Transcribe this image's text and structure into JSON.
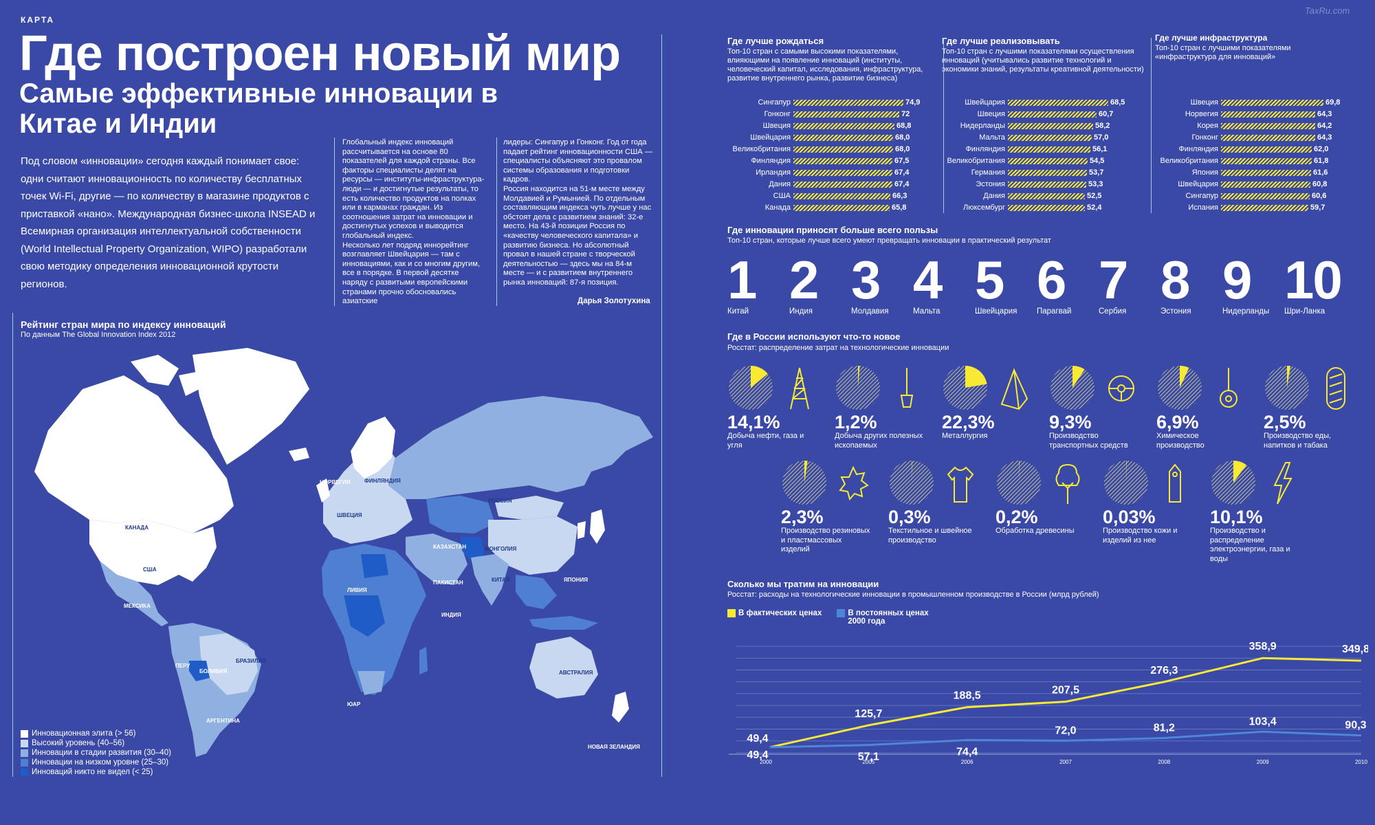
{
  "header": {
    "kicker": "КАРТА",
    "title": "Где построен новый мир",
    "subtitle": "Самые эффективные инновации в Китае и Индии",
    "watermark": "TaxRu.com"
  },
  "lead": "Под словом «инновации» сегодня каждый понимает свое: одни считают инновационность по количеству бесплатных точек Wi-Fi, другие — по количеству в магазине продуктов с приставкой «нано». Международная бизнес-школа INSEAD и Всемирная организация интеллектуальной собственности (World Intellectual Property Organization, WIPO) разработали свою методику определения инновационной крутости регионов.",
  "body": {
    "col1": "Глобальный индекс инноваций рассчитывается на основе 80 показателей для каждой страны. Все факторы специалисты делят на ресурсы — институты-инфраструктура-люди — и достигнутые результаты, то есть количество продуктов на полках или в карманах граждан. Из соотношения затрат на инновации и достигнутых успехов и выводится глобальный индекс.\nНесколько лет подряд иннорейтинг возглавляет Швейцария — там с инновациями, как и со многим другим, все в порядке. В первой десятке наряду с развитыми европейскими странами прочно обосновались азиатские",
    "col2": "лидеры: Сингапур и Гонконг. Год от года падает рейтинг инновационности США — специалисты объясняют это провалом системы образования и подготовки кадров.\nРоссия находится на 51-м месте между Молдавией и Румынией. По отдельным составляющим индекса чуть лучше у нас обстоят дела с развитием знаний: 32-е место. На 43-й позиции Россия по «качеству человеческого капитала» и развитию бизнеса. Но абсолютный провал в нашей стране с творческой деятельностью — здесь мы на 84-м месте — и с развитием внутреннего рынка инноваций: 87-я позиция.",
    "author": "Дарья Золотухина"
  },
  "map": {
    "title": "Рейтинг стран мира по индексу инноваций",
    "source": "По данным The Global Innovation Index 2012",
    "labels": {
      "canada": "КАНАДА",
      "usa": "США",
      "mexico": "МЕКСИКА",
      "peru": "ПЕРУ",
      "bolivia": "БОЛИВИЯ",
      "brazil": "БРАЗИЛИЯ",
      "argentina": "АРГЕНТИНА",
      "norway": "НОРВЕГИЯ",
      "finland": "ФИНЛЯНДИЯ",
      "sweden": "ШВЕЦИЯ",
      "russia": "РОССИЯ",
      "kazakhstan": "КАЗАХСТАН",
      "mongolia": "МОНГОЛИЯ",
      "china": "КИТАЙ",
      "japan": "ЯПОНИЯ",
      "pakistan": "ПАКИСТАН",
      "india": "ИНДИЯ",
      "libya": "ЛИВИЯ",
      "sa": "ЮАР",
      "australia": "АВСТРАЛИЯ",
      "nz": "НОВАЯ ЗЕЛАНДИЯ"
    },
    "legend": [
      {
        "label": "Инновационная элита (> 56)",
        "color": "#ffffff"
      },
      {
        "label": "Высокий уровень (40–56)",
        "color": "#c8d8f0"
      },
      {
        "label": "Инновации в стадии развития (30–40)",
        "color": "#8fb0e0"
      },
      {
        "label": "Инновации на низком уровне (25–30)",
        "color": "#4f7fd0"
      },
      {
        "label": "Инноваций никто не видел (< 25)",
        "color": "#1f5cc8"
      }
    ]
  },
  "rankings": [
    {
      "title": "Где лучше рождаться",
      "subtitle": "Топ-10 стран с самыми высокими показателями, влияющими на появление инноваций (институты, человеческий капитал, исследования, инфраструктура, развитие внутреннего рынка, развитие бизнеса)",
      "items": [
        {
          "name": "Сингапур",
          "value": 74.9,
          "label": "74,9"
        },
        {
          "name": "Гонконг",
          "value": 72.0,
          "label": "72"
        },
        {
          "name": "Швеция",
          "value": 68.8,
          "label": "68,8"
        },
        {
          "name": "Швейцария",
          "value": 68.0,
          "label": "68,0"
        },
        {
          "name": "Великобритания",
          "value": 68.0,
          "label": "68,0"
        },
        {
          "name": "Финляндия",
          "value": 67.5,
          "label": "67,5"
        },
        {
          "name": "Ирландия",
          "value": 67.4,
          "label": "67,4"
        },
        {
          "name": "Дания",
          "value": 67.4,
          "label": "67,4"
        },
        {
          "name": "США",
          "value": 66.3,
          "label": "66,3"
        },
        {
          "name": "Канада",
          "value": 65.8,
          "label": "65,8"
        }
      ]
    },
    {
      "title": "Где лучше реализовывать",
      "subtitle": "Топ-10 стран с лучшими показателями осуществления инноваций (учитывались развитие технологий и экономики знаний, результаты креативной деятельности)",
      "items": [
        {
          "name": "Швейцария",
          "value": 68.5,
          "label": "68,5"
        },
        {
          "name": "Швеция",
          "value": 60.7,
          "label": "60,7"
        },
        {
          "name": "Нидерланды",
          "value": 58.2,
          "label": "58,2"
        },
        {
          "name": "Мальта",
          "value": 57.0,
          "label": "57,0"
        },
        {
          "name": "Финляндия",
          "value": 56.1,
          "label": "56,1"
        },
        {
          "name": "Великобритания",
          "value": 54.5,
          "label": "54,5"
        },
        {
          "name": "Германия",
          "value": 53.7,
          "label": "53,7"
        },
        {
          "name": "Эстония",
          "value": 53.3,
          "label": "53,3"
        },
        {
          "name": "Дания",
          "value": 52.5,
          "label": "52,5"
        },
        {
          "name": "Люксембург",
          "value": 52.4,
          "label": "52,4"
        }
      ]
    },
    {
      "title": "Где лучше инфраструктура",
      "subtitle": "Топ-10 стран с лучшими показателями «инфраструктура для инноваций»",
      "items": [
        {
          "name": "Швеция",
          "value": 69.8,
          "label": "69,8"
        },
        {
          "name": "Норвегия",
          "value": 64.3,
          "label": "64,3"
        },
        {
          "name": "Корея",
          "value": 64.2,
          "label": "64,2"
        },
        {
          "name": "Гонконг",
          "value": 64.3,
          "label": "64,3"
        },
        {
          "name": "Финляндия",
          "value": 62.0,
          "label": "62,0"
        },
        {
          "name": "Великобритания",
          "value": 61.8,
          "label": "61,8"
        },
        {
          "name": "Япония",
          "value": 61.6,
          "label": "61,6"
        },
        {
          "name": "Швейцария",
          "value": 60.8,
          "label": "60,8"
        },
        {
          "name": "Сингапур",
          "value": 60.6,
          "label": "60,6"
        },
        {
          "name": "Испания",
          "value": 59.7,
          "label": "59,7"
        }
      ]
    }
  ],
  "benefit": {
    "title": "Где инновации приносят больше всего пользы",
    "subtitle": "Топ-10 стран, которые лучше всего умеют превращать инновации в практический результат",
    "items": [
      {
        "n": "1",
        "name": "Китай"
      },
      {
        "n": "2",
        "name": "Индия"
      },
      {
        "n": "3",
        "name": "Молдавия"
      },
      {
        "n": "4",
        "name": "Мальта"
      },
      {
        "n": "5",
        "name": "Швейцария"
      },
      {
        "n": "6",
        "name": "Парагвай"
      },
      {
        "n": "7",
        "name": "Сербия"
      },
      {
        "n": "8",
        "name": "Эстония"
      },
      {
        "n": "9",
        "name": "Нидерланды"
      },
      {
        "n": "10",
        "name": "Шри-Ланка"
      }
    ]
  },
  "russia": {
    "title": "Где в России используют что-то новое",
    "subtitle": "Росстат: распределение затрат на технологические инновации",
    "items": [
      {
        "pct": 14.1,
        "label": "14,1%",
        "caption": "Добыча нефти, газа и угля",
        "icon": "oil-derrick-icon"
      },
      {
        "pct": 1.2,
        "label": "1,2%",
        "caption": "Добыча других полезных ископаемых",
        "icon": "shovel-icon"
      },
      {
        "pct": 22.3,
        "label": "22,3%",
        "caption": "Металлургия",
        "icon": "pyramid-icon"
      },
      {
        "pct": 9.3,
        "label": "9,3%",
        "caption": "Производство транспортных средств",
        "icon": "steering-wheel-icon"
      },
      {
        "pct": 6.9,
        "label": "6,9%",
        "caption": "Химическое производство",
        "icon": "flask-icon"
      },
      {
        "pct": 2.5,
        "label": "2,5%",
        "caption": "Производство еды, напитков и табака",
        "icon": "bread-icon"
      },
      {
        "pct": 2.3,
        "label": "2,3%",
        "caption": "Производство резиновых и пластмассовых изделий",
        "icon": "gear-icon"
      },
      {
        "pct": 0.3,
        "label": "0,3%",
        "caption": "Текстильное и швейное производство",
        "icon": "tshirt-icon"
      },
      {
        "pct": 0.2,
        "label": "0,2%",
        "caption": "Обработка древесины",
        "icon": "tree-icon"
      },
      {
        "pct": 0.03,
        "label": "0,03%",
        "caption": "Производство кожи и изделий из нее",
        "icon": "tag-icon"
      },
      {
        "pct": 10.1,
        "label": "10,1%",
        "caption": "Производство и распределение электроэнергии, газа и воды",
        "icon": "lightning-icon"
      }
    ]
  },
  "chart_data": {
    "type": "line",
    "title": "Сколько мы тратим на инновации",
    "subtitle": "Росстат: расходы на технологические инновации в промышленном производстве в России (млрд рублей)",
    "x": [
      2000,
      2005,
      2006,
      2007,
      2008,
      2009,
      2010
    ],
    "x_labels": [
      "2000",
      "2005",
      "2006",
      "2007",
      "2008",
      "2009",
      "2010"
    ],
    "series": [
      {
        "name": "В фактических ценах",
        "color": "#f7e934",
        "values": [
          49.4,
          125.7,
          188.5,
          207.5,
          276.3,
          358.9,
          349.8
        ],
        "labels": [
          "49,4",
          "125,7",
          "188,5",
          "207,5",
          "276,3",
          "358,9",
          "349,8"
        ]
      },
      {
        "name": "В постоянных ценах 2000 года",
        "color": "#4d86d6",
        "values": [
          49.4,
          57.1,
          74.4,
          72.0,
          81.2,
          103.4,
          90.3
        ],
        "labels": [
          "49,4",
          "57,1",
          "74,4",
          "72,0",
          "81,2",
          "103,4",
          "90,3"
        ]
      }
    ],
    "ylim": [
      30,
      400
    ]
  }
}
